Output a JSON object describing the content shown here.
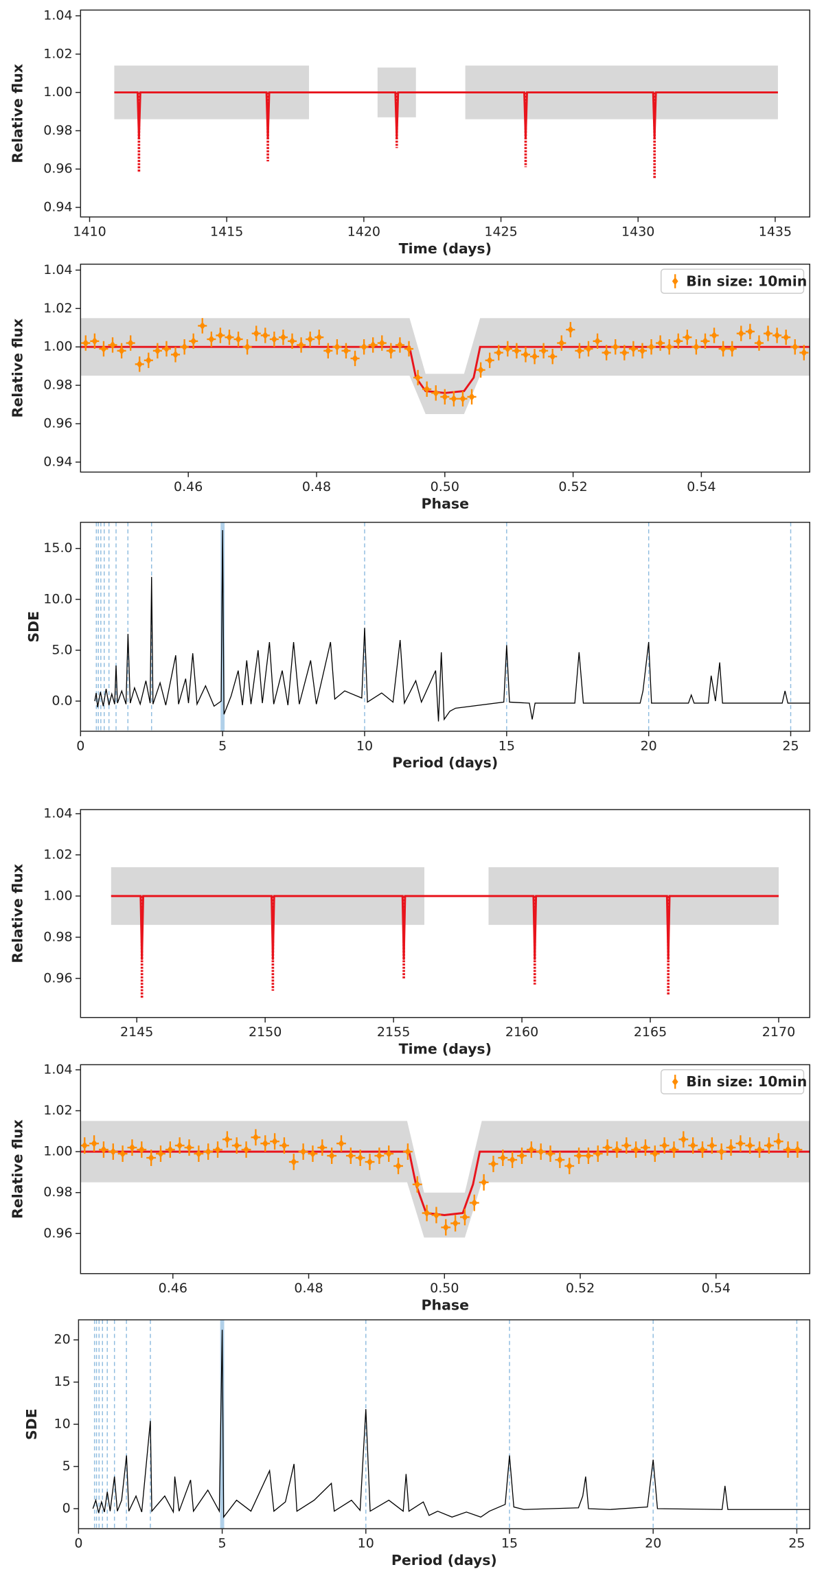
{
  "chart_data": [
    {
      "type": "scatter",
      "xlabel": "Time (days)",
      "ylabel": "Relative flux",
      "xlim": [
        1409.67,
        1436.26
      ],
      "ylim": [
        0.935,
        1.043
      ],
      "xticks": [
        1410,
        1415,
        1420,
        1425,
        1430,
        1435
      ],
      "yticks": [
        0.94,
        0.96,
        0.98,
        {
          "value": 1,
          "label": "1.00"
        },
        1.02,
        1.04
      ],
      "flux_spread": {
        "color": "#a9a9a9",
        "x": [
          1410.9,
          1418.0,
          null,
          1420.5,
          1421.9,
          null,
          1423.7,
          1435.1
        ],
        "low": [
          0.986,
          0.986,
          null,
          0.987,
          0.987,
          null,
          0.986,
          0.986
        ],
        "high": [
          1.014,
          1.014,
          null,
          1.013,
          1.013,
          null,
          1.014,
          1.014
        ]
      },
      "model": {
        "color": "#e8141c",
        "x": [
          1410.9,
          1411.75,
          1411.8,
          1411.85,
          1416.45,
          1416.5,
          1416.55,
          1421.15,
          1421.2,
          1421.25,
          1425.85,
          1425.9,
          1425.95,
          1430.55,
          1430.6,
          1430.65,
          1435.1
        ],
        "values": [
          1,
          1,
          0.976,
          1,
          1,
          0.976,
          1,
          1,
          0.976,
          1,
          1,
          0.976,
          1,
          1,
          0.976,
          1,
          1
        ]
      },
      "transits": {
        "color": "#e8141c",
        "x": [
          1411.8,
          1416.5,
          1421.2,
          1425.9,
          1430.6
        ],
        "values": [
          0.958,
          0.964,
          0.971,
          0.961,
          0.955
        ]
      }
    },
    {
      "type": "errorbar",
      "xlabel": "Phase",
      "ylabel": "Relative flux",
      "legend": "upper right",
      "xlim": [
        0.4432,
        0.5569
      ],
      "ylim": [
        0.9348,
        1.0431
      ],
      "xticks": [
        0.46,
        0.48,
        {
          "value": 0.5,
          "label": "0.50"
        },
        0.52,
        0.54
      ],
      "yticks": [
        0.94,
        0.96,
        0.98,
        {
          "value": 1,
          "label": "1.00"
        },
        1.02,
        1.04
      ],
      "flux_spread": {
        "color": "#a9a9a9",
        "x": [
          0.4432,
          0.4945,
          0.497,
          0.503,
          0.5055,
          0.5569
        ],
        "low": [
          0.985,
          0.985,
          0.965,
          0.965,
          0.985,
          0.985
        ],
        "high": [
          1.015,
          1.015,
          0.986,
          0.986,
          1.015,
          1.015
        ]
      },
      "model": {
        "color": "#e8141c",
        "x": [
          0.4432,
          0.4945,
          0.4955,
          0.497,
          0.5,
          0.503,
          0.5045,
          0.5055,
          0.5569
        ],
        "values": [
          1,
          1,
          0.984,
          0.977,
          0.976,
          0.977,
          0.984,
          1,
          1
        ]
      },
      "binned": {
        "name": "Bin size: 10min",
        "color": "#ff8c00",
        "yerr": 0.004,
        "xerr": 0.0007,
        "x": [
          0.444,
          0.4454,
          0.4468,
          0.4482,
          0.4496,
          0.451,
          0.4524,
          0.4538,
          0.4552,
          0.4566,
          0.458,
          0.4594,
          0.4608,
          0.4622,
          0.4636,
          0.465,
          0.4664,
          0.4678,
          0.4692,
          0.4706,
          0.472,
          0.4734,
          0.4748,
          0.4762,
          0.4776,
          0.479,
          0.4804,
          0.4818,
          0.4832,
          0.4846,
          0.486,
          0.4874,
          0.4888,
          0.4902,
          0.4916,
          0.493,
          0.4944,
          0.4958,
          0.4972,
          0.4986,
          0.5,
          0.5014,
          0.5028,
          0.5042,
          0.5056,
          0.507,
          0.5084,
          0.5098,
          0.5112,
          0.5126,
          0.514,
          0.5154,
          0.5168,
          0.5182,
          0.5196,
          0.521,
          0.5224,
          0.5238,
          0.5252,
          0.5266,
          0.528,
          0.5294,
          0.5308,
          0.5322,
          0.5336,
          0.535,
          0.5364,
          0.5378,
          0.5392,
          0.5406,
          0.542,
          0.5434,
          0.5448,
          0.5462,
          0.5476,
          0.549,
          0.5504,
          0.5518,
          0.5532,
          0.5546,
          0.556
        ],
        "values": [
          1.002,
          1.003,
          0.999,
          1.001,
          0.998,
          1.002,
          0.991,
          0.993,
          0.998,
          0.999,
          0.996,
          1.0,
          1.003,
          1.011,
          1.004,
          1.006,
          1.005,
          1.004,
          1.0,
          1.007,
          1.006,
          1.004,
          1.005,
          1.003,
          1.001,
          1.004,
          1.005,
          0.998,
          1.0,
          0.998,
          0.994,
          1.0,
          1.001,
          1.002,
          0.998,
          1.001,
          0.999,
          0.984,
          0.978,
          0.976,
          0.974,
          0.973,
          0.973,
          0.974,
          0.988,
          0.993,
          0.997,
          0.999,
          0.998,
          0.996,
          0.995,
          0.998,
          0.995,
          1.002,
          1.009,
          0.998,
          0.999,
          1.003,
          0.997,
          1.0,
          0.997,
          0.999,
          0.998,
          1.0,
          1.002,
          1.0,
          1.003,
          1.005,
          1.0,
          1.003,
          1.006,
          0.999,
          0.999,
          1.007,
          1.008,
          1.002,
          1.007,
          1.006,
          1.005,
          1.0,
          0.997
        ]
      }
    },
    {
      "type": "line",
      "xlabel": "Period (days)",
      "ylabel": "SDE",
      "xlim": [
        0,
        25.67
      ],
      "ylim": [
        -2.96,
        17.57
      ],
      "xticks": [
        0,
        5,
        10,
        15,
        20,
        25
      ],
      "yticks": [
        {
          "value": 0,
          "label": "0.0"
        },
        {
          "value": 5,
          "label": "5.0"
        },
        {
          "value": 10,
          "label": "10.0"
        },
        {
          "value": 15,
          "label": "15.0"
        }
      ],
      "period": 5.0,
      "harmonics": [
        0.556,
        0.625,
        0.714,
        0.833,
        1.0,
        1.25,
        1.667,
        2.5,
        10,
        15,
        20,
        25
      ],
      "harmonic_color": "#8fbcdf",
      "color": "#000000",
      "x": [
        0.5,
        0.55,
        0.6,
        0.7,
        0.8,
        0.9,
        1.0,
        1.1,
        1.2,
        1.25,
        1.3,
        1.45,
        1.6,
        1.67,
        1.75,
        1.9,
        2.1,
        2.3,
        2.45,
        2.5,
        2.55,
        2.8,
        3.0,
        3.35,
        3.45,
        3.7,
        3.8,
        3.95,
        4.1,
        4.4,
        4.7,
        4.95,
        5.0,
        5.05,
        5.3,
        5.55,
        5.7,
        5.85,
        6.0,
        6.25,
        6.4,
        6.65,
        6.8,
        7.1,
        7.3,
        7.5,
        7.7,
        8.1,
        8.3,
        8.8,
        8.95,
        9.3,
        9.9,
        10.0,
        10.1,
        10.6,
        11.0,
        11.25,
        11.4,
        11.8,
        12.0,
        12.5,
        12.6,
        12.7,
        12.8,
        13.0,
        13.2,
        14.9,
        15.0,
        15.1,
        15.8,
        15.9,
        16.0,
        17.4,
        17.55,
        17.7,
        19.7,
        19.8,
        20.0,
        20.1,
        21.4,
        21.5,
        21.6,
        22.1,
        22.2,
        22.35,
        22.5,
        22.6,
        24.7,
        24.8,
        24.9,
        25.67
      ],
      "values": [
        0,
        0.8,
        -0.6,
        0.9,
        -0.5,
        1.2,
        -0.4,
        0.7,
        -0.3,
        3.5,
        -0.2,
        1.0,
        -0.3,
        6.6,
        -0.2,
        1.3,
        -0.3,
        2.0,
        -0.2,
        12.2,
        -0.3,
        1.8,
        -0.4,
        4.5,
        -0.3,
        2.2,
        -0.2,
        4.7,
        -0.3,
        1.5,
        -0.5,
        0,
        16.8,
        -1.3,
        0.5,
        3.0,
        -0.4,
        4.0,
        -0.3,
        5.0,
        -0.2,
        5.8,
        -0.3,
        3.0,
        -0.4,
        5.8,
        -0.3,
        4.0,
        -0.3,
        5.8,
        0.2,
        1.0,
        0.3,
        7.2,
        -0.1,
        0.8,
        -0.1,
        6.0,
        -0.2,
        2.0,
        -0.1,
        3.0,
        -2.0,
        4.8,
        -1.8,
        -1.0,
        -0.7,
        -0.1,
        5.5,
        -0.1,
        -0.2,
        -1.8,
        -0.2,
        -0.2,
        4.8,
        -0.2,
        -0.2,
        1.0,
        5.8,
        -0.2,
        -0.2,
        0.6,
        -0.2,
        -0.2,
        2.5,
        0,
        3.8,
        -0.2,
        -0.2,
        1.0,
        -0.2,
        -0.2
      ]
    },
    {
      "type": "scatter",
      "xlabel": "Time (days)",
      "ylabel": "Relative flux",
      "xlim": [
        2142.81,
        2171.21
      ],
      "ylim": [
        0.941,
        1.042
      ],
      "xticks": [
        2145,
        2150,
        2155,
        2160,
        2165,
        2170
      ],
      "yticks": [
        0.96,
        0.98,
        {
          "value": 1,
          "label": "1.00"
        },
        1.02,
        1.04
      ],
      "flux_spread": {
        "color": "#a9a9a9",
        "x": [
          2144.0,
          2156.2,
          null,
          2158.7,
          2170.0
        ],
        "low": [
          0.986,
          0.986,
          null,
          0.986,
          0.986
        ],
        "high": [
          1.014,
          1.014,
          null,
          1.014,
          1.014
        ]
      },
      "model": {
        "color": "#e8141c",
        "x": [
          2144.0,
          2145.15,
          2145.2,
          2145.25,
          2150.25,
          2150.3,
          2150.35,
          2155.35,
          2155.4,
          2155.45,
          2160.45,
          2160.5,
          2160.55,
          2165.65,
          2165.7,
          2165.75,
          2170.0
        ],
        "values": [
          1,
          1,
          0.969,
          1,
          1,
          0.969,
          1,
          1,
          0.969,
          1,
          1,
          0.969,
          1,
          1,
          0.969,
          1,
          1
        ]
      },
      "transits": {
        "color": "#e8141c",
        "x": [
          2145.2,
          2150.3,
          2155.4,
          2160.5,
          2165.7
        ],
        "values": [
          0.95,
          0.954,
          0.96,
          0.957,
          0.952
        ]
      }
    },
    {
      "type": "errorbar",
      "xlabel": "Phase",
      "ylabel": "Relative flux",
      "legend": "upper right",
      "xlim": [
        0.4464,
        0.5538
      ],
      "ylim": [
        0.9404,
        1.0425
      ],
      "xticks": [
        0.46,
        0.48,
        {
          "value": 0.5,
          "label": "0.50"
        },
        0.52,
        0.54
      ],
      "yticks": [
        0.96,
        0.98,
        {
          "value": 1,
          "label": "1.00"
        },
        1.02,
        1.04
      ],
      "flux_spread": {
        "color": "#a9a9a9",
        "x": [
          0.4464,
          0.4945,
          0.497,
          0.503,
          0.5055,
          0.5538
        ],
        "low": [
          0.985,
          0.985,
          0.958,
          0.958,
          0.985,
          0.985
        ],
        "high": [
          1.015,
          1.015,
          0.98,
          0.98,
          1.015,
          1.015
        ]
      },
      "model": {
        "color": "#e8141c",
        "x": [
          0.4464,
          0.4948,
          0.4958,
          0.4973,
          0.5,
          0.5027,
          0.5042,
          0.5052,
          0.5538
        ],
        "values": [
          1,
          1,
          0.984,
          0.97,
          0.969,
          0.97,
          0.984,
          1,
          1
        ]
      },
      "binned": {
        "name": "Bin size: 10min",
        "color": "#ff8c00",
        "yerr": 0.004,
        "xerr": 0.0007,
        "x": [
          0.447,
          0.4484,
          0.4498,
          0.4512,
          0.4526,
          0.454,
          0.4554,
          0.4568,
          0.4582,
          0.4596,
          0.461,
          0.4624,
          0.4638,
          0.4652,
          0.4666,
          0.468,
          0.4694,
          0.4708,
          0.4722,
          0.4736,
          0.475,
          0.4764,
          0.4778,
          0.4792,
          0.4806,
          0.482,
          0.4834,
          0.4848,
          0.4862,
          0.4876,
          0.489,
          0.4904,
          0.4918,
          0.4932,
          0.4946,
          0.496,
          0.4974,
          0.4988,
          0.5002,
          0.5016,
          0.503,
          0.5044,
          0.5058,
          0.5072,
          0.5086,
          0.51,
          0.5114,
          0.5128,
          0.5142,
          0.5156,
          0.517,
          0.5184,
          0.5198,
          0.5212,
          0.5226,
          0.524,
          0.5254,
          0.5268,
          0.5282,
          0.5296,
          0.531,
          0.5324,
          0.5338,
          0.5352,
          0.5366,
          0.538,
          0.5394,
          0.5408,
          0.5422,
          0.5436,
          0.545,
          0.5464,
          0.5478,
          0.5492,
          0.5506,
          0.552
        ],
        "values": [
          1.003,
          1.004,
          1.001,
          1.0,
          0.999,
          1.002,
          1.001,
          0.997,
          0.999,
          1.001,
          1.003,
          1.002,
          0.999,
          1.0,
          1.001,
          1.006,
          1.003,
          1.001,
          1.007,
          1.004,
          1.005,
          1.003,
          0.995,
          1.0,
          0.999,
          1.002,
          0.998,
          1.004,
          0.998,
          0.997,
          0.995,
          0.998,
          0.999,
          0.993,
          1.0,
          0.984,
          0.97,
          0.969,
          0.963,
          0.965,
          0.968,
          0.975,
          0.985,
          0.994,
          0.997,
          0.996,
          0.998,
          1.001,
          1.0,
          0.999,
          0.996,
          0.993,
          0.998,
          0.998,
          0.999,
          1.002,
          1.001,
          1.003,
          1.001,
          1.002,
          0.999,
          1.003,
          1.001,
          1.006,
          1.003,
          1.001,
          1.003,
          1.0,
          1.002,
          1.004,
          1.003,
          1.001,
          1.003,
          1.005,
          1.001,
          1.001
        ]
      }
    },
    {
      "type": "line",
      "xlabel": "Period (days)",
      "ylabel": "SDE",
      "xlim": [
        0,
        25.45
      ],
      "ylim": [
        -2.38,
        22.38
      ],
      "xticks": [
        0,
        5,
        10,
        15,
        20,
        25
      ],
      "yticks": [
        0,
        5,
        10,
        15,
        20
      ],
      "period": 5.0,
      "harmonics": [
        0.556,
        0.625,
        0.714,
        0.833,
        1.0,
        1.25,
        1.667,
        2.5,
        10,
        15,
        20,
        25
      ],
      "harmonic_color": "#8fbcdf",
      "color": "#000000",
      "x": [
        0.5,
        0.6,
        0.7,
        0.8,
        0.9,
        1.0,
        1.1,
        1.25,
        1.35,
        1.5,
        1.67,
        1.75,
        2.0,
        2.2,
        2.5,
        2.55,
        3.0,
        3.3,
        3.35,
        3.5,
        3.9,
        4.0,
        4.5,
        4.9,
        5.0,
        5.05,
        5.5,
        6.0,
        6.65,
        6.8,
        7.2,
        7.5,
        7.6,
        8.2,
        8.8,
        8.9,
        9.5,
        9.8,
        10.0,
        10.15,
        10.8,
        11.3,
        11.4,
        11.5,
        12.0,
        12.2,
        12.5,
        13.0,
        13.5,
        14.0,
        14.3,
        14.85,
        15.0,
        15.15,
        15.5,
        17.4,
        17.55,
        17.65,
        17.75,
        18.5,
        19.8,
        20.0,
        20.15,
        22.4,
        22.5,
        22.6,
        25.45
      ],
      "values": [
        0,
        1.0,
        -0.5,
        0.8,
        -0.4,
        2.0,
        -0.3,
        3.8,
        -0.3,
        1.0,
        6.3,
        -0.3,
        1.5,
        -0.4,
        10.4,
        -0.3,
        1.5,
        -0.4,
        3.8,
        -0.3,
        3.4,
        -0.3,
        2.2,
        -0.3,
        21.2,
        -1.0,
        1.0,
        -0.3,
        4.5,
        -0.3,
        0.8,
        5.3,
        -0.3,
        1.0,
        3.0,
        -0.3,
        1.0,
        -0.2,
        11.8,
        -0.3,
        1.0,
        -0.3,
        4.1,
        -0.3,
        0.8,
        -0.8,
        -0.3,
        -1.0,
        -0.4,
        -1.0,
        -0.3,
        0.5,
        6.3,
        0.2,
        -0.1,
        0.1,
        1.5,
        3.8,
        0,
        -0.1,
        0.2,
        5.8,
        0,
        -0.1,
        2.7,
        -0.1,
        -0.1
      ]
    }
  ]
}
